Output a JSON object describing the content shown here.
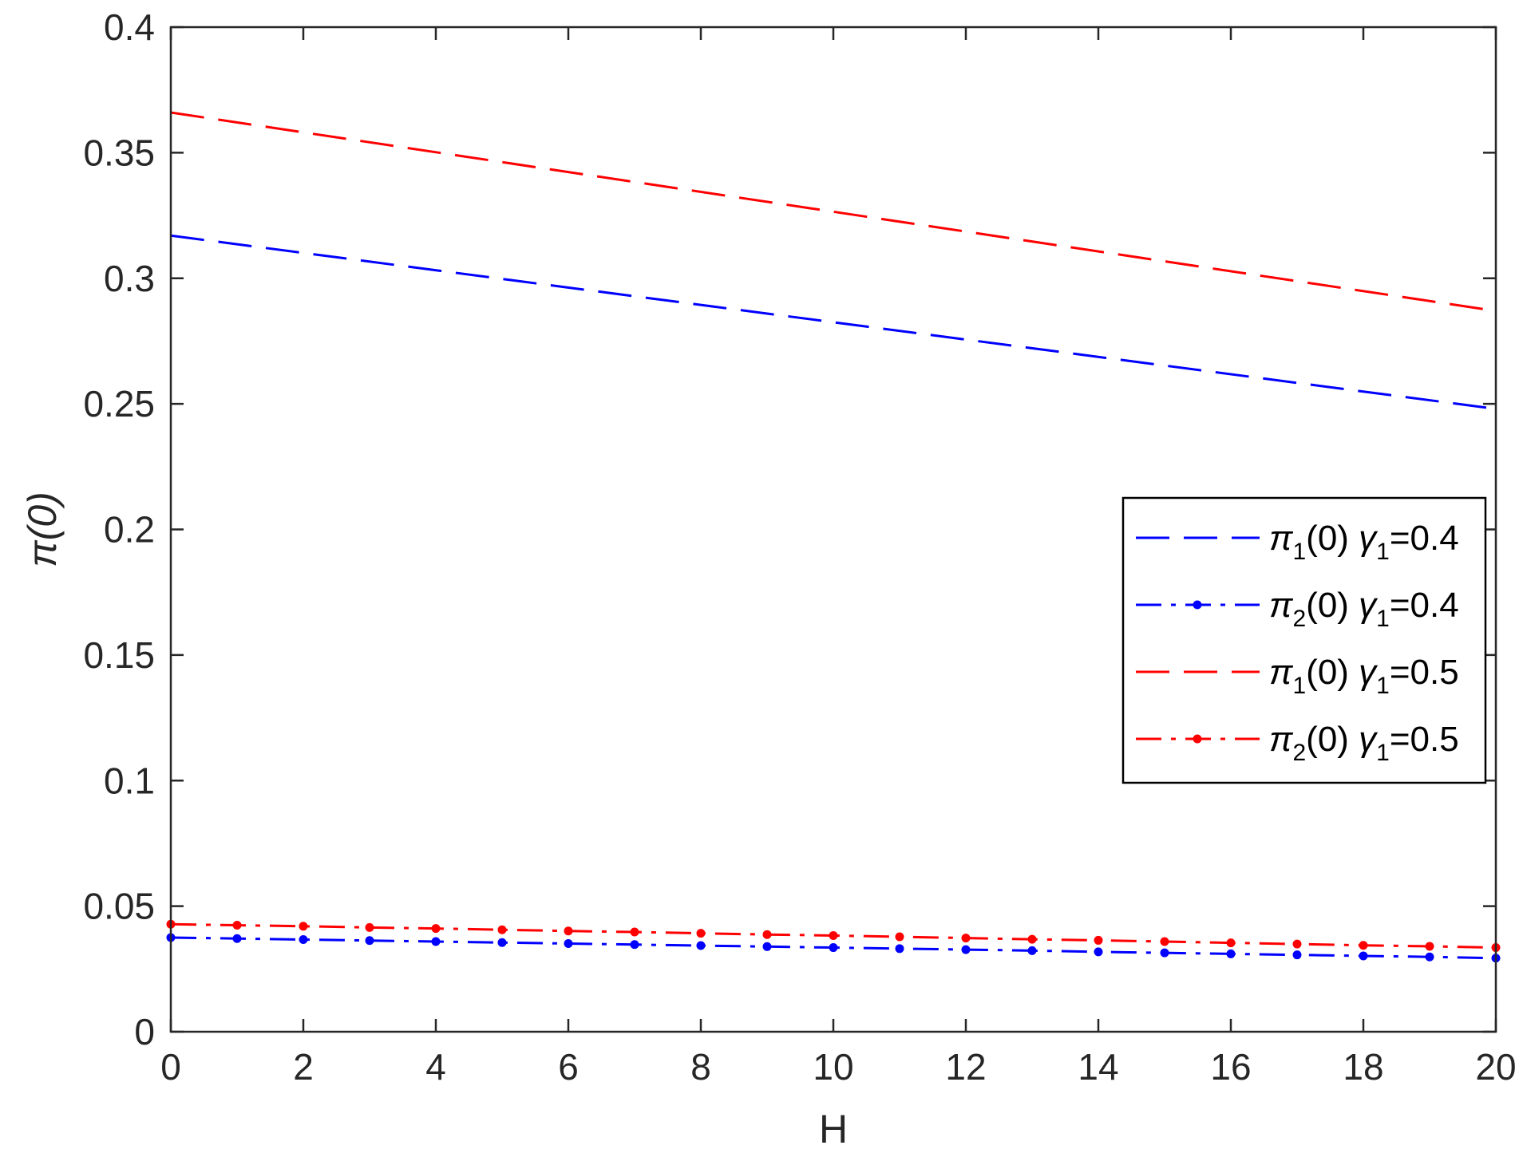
{
  "chart_data": {
    "type": "line",
    "title": "",
    "xlabel": "H",
    "ylabel": "π(0)",
    "xlim": [
      0,
      20
    ],
    "ylim": [
      0,
      0.4
    ],
    "xticks": [
      "0",
      "2",
      "4",
      "6",
      "8",
      "10",
      "12",
      "14",
      "16",
      "18",
      "20"
    ],
    "yticks": [
      "0",
      "0.05",
      "0.1",
      "0.15",
      "0.2",
      "0.25",
      "0.3",
      "0.35",
      "0.4"
    ],
    "grid": false,
    "legend_position": "right",
    "series": [
      {
        "legend": {
          "sym": "π",
          "sub": "1",
          "mid": "(0) ",
          "gsym": "γ",
          "gsub": "1",
          "tail": "=0.4"
        },
        "color": "#0000ff",
        "style": "dashed",
        "markers": false,
        "x": [
          0,
          20
        ],
        "y": [
          0.317,
          0.248
        ]
      },
      {
        "legend": {
          "sym": "π",
          "sub": "2",
          "mid": "(0) ",
          "gsym": "γ",
          "gsub": "1",
          "tail": "=0.4"
        },
        "color": "#0000ff",
        "style": "dashdot",
        "markers": true,
        "x": [
          0,
          1,
          2,
          3,
          4,
          5,
          6,
          7,
          8,
          9,
          10,
          11,
          12,
          13,
          14,
          15,
          16,
          17,
          18,
          19,
          20
        ],
        "y": [
          0.0375,
          0.0371,
          0.0367,
          0.0363,
          0.0359,
          0.0355,
          0.0351,
          0.0347,
          0.0343,
          0.0339,
          0.0335,
          0.0331,
          0.0327,
          0.0323,
          0.0318,
          0.0314,
          0.031,
          0.0306,
          0.0302,
          0.0298,
          0.0293
        ]
      },
      {
        "legend": {
          "sym": "π",
          "sub": "1",
          "mid": "(0) ",
          "gsym": "γ",
          "gsub": "1",
          "tail": "=0.5"
        },
        "color": "#ff0000",
        "style": "dashed",
        "markers": false,
        "x": [
          0,
          20
        ],
        "y": [
          0.366,
          0.287
        ]
      },
      {
        "legend": {
          "sym": "π",
          "sub": "2",
          "mid": "(0) ",
          "gsym": "γ",
          "gsub": "1",
          "tail": "=0.5"
        },
        "color": "#ff0000",
        "style": "dashdot",
        "markers": true,
        "x": [
          0,
          1,
          2,
          3,
          4,
          5,
          6,
          7,
          8,
          9,
          10,
          11,
          12,
          13,
          14,
          15,
          16,
          17,
          18,
          19,
          20
        ],
        "y": [
          0.0428,
          0.0424,
          0.042,
          0.0415,
          0.0411,
          0.0406,
          0.0401,
          0.0397,
          0.0392,
          0.0387,
          0.0383,
          0.0378,
          0.0373,
          0.0368,
          0.0364,
          0.0359,
          0.0354,
          0.0349,
          0.0344,
          0.034,
          0.0335
        ]
      }
    ]
  }
}
